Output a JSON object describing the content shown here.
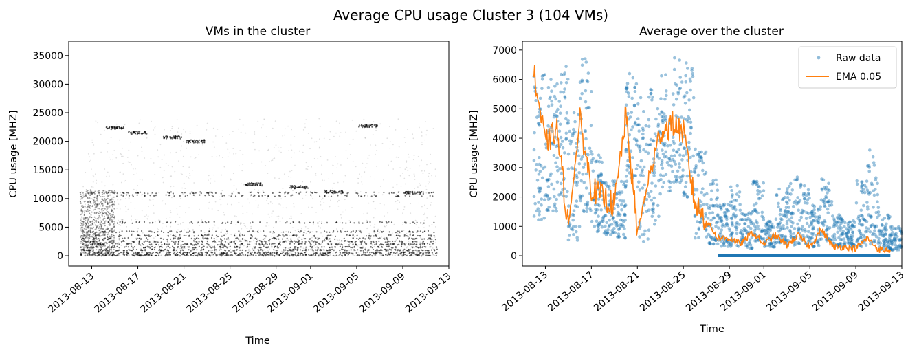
{
  "figure": {
    "suptitle": "Average CPU usage Cluster 3 (104 VMs)"
  },
  "chart_data": [
    {
      "type": "scatter",
      "title": "VMs in the cluster",
      "xlabel": "Time",
      "ylabel": "CPU usage [MHZ]",
      "x_ticks": [
        "2013-08-13",
        "2013-08-17",
        "2013-08-21",
        "2013-08-25",
        "2013-08-29",
        "2013-09-01",
        "2013-09-05",
        "2013-09-09",
        "2013-09-13"
      ],
      "y_ticks": [
        0,
        5000,
        10000,
        15000,
        20000,
        25000,
        30000,
        35000
      ],
      "xlim": [
        "2013-08-11",
        "2013-09-13"
      ],
      "ylim": [
        -1800,
        37500
      ],
      "x_range": [
        "2013-08-12",
        "2013-09-12"
      ],
      "point_color": "#000000",
      "bands": [
        {
          "y": 100,
          "density": 1.0
        },
        {
          "y": 500,
          "density": 0.9
        },
        {
          "y": 1000,
          "density": 0.85
        },
        {
          "y": 1500,
          "density": 0.7
        },
        {
          "y": 2000,
          "density": 0.65
        },
        {
          "y": 2500,
          "density": 0.6
        },
        {
          "y": 3000,
          "density": 0.55
        },
        {
          "y": 3500,
          "density": 0.5
        },
        {
          "y": 4200,
          "density": 0.45
        },
        {
          "y": 5800,
          "density": 0.35
        },
        {
          "y": 10500,
          "density": 0.3
        },
        {
          "y": 11000,
          "density": 0.4
        }
      ],
      "early_block": {
        "x_start": "2013-08-12",
        "x_end": "2013-08-15",
        "y_min": 0,
        "y_max": 11500
      },
      "clusters": [
        {
          "x": "2013-08-15",
          "y": 22300
        },
        {
          "x": "2013-08-17",
          "y": 21500
        },
        {
          "x": "2013-08-20",
          "y": 20700
        },
        {
          "x": "2013-08-22",
          "y": 20000
        },
        {
          "x": "2013-08-31",
          "y": 12000
        },
        {
          "x": "2013-09-03",
          "y": 11200
        },
        {
          "x": "2013-09-10",
          "y": 11000
        },
        {
          "x": "2013-09-06",
          "y": 22700
        },
        {
          "x": "2013-08-27",
          "y": 12500
        }
      ]
    },
    {
      "type": "scatter+line",
      "title": "Average over the cluster",
      "xlabel": "Time",
      "ylabel": "CPU usage [MHZ]",
      "x_ticks": [
        "2013-08-13",
        "2013-08-17",
        "2013-08-21",
        "2013-08-25",
        "2013-08-29",
        "2013-09-01",
        "2013-09-05",
        "2013-09-09",
        "2013-09-13"
      ],
      "y_ticks": [
        0,
        1000,
        2000,
        3000,
        4000,
        5000,
        6000,
        7000
      ],
      "xlim": [
        "2013-08-11",
        "2013-09-13"
      ],
      "ylim": [
        -350,
        7300
      ],
      "legend": {
        "position": "top-right",
        "entries": [
          "Raw data",
          "EMA 0.05"
        ]
      },
      "series": [
        {
          "name": "Raw data",
          "type": "scatter",
          "color": "#1f77b4"
        },
        {
          "name": "EMA 0.05",
          "type": "line",
          "color": "#ff7f0e"
        }
      ],
      "ema_curve": [
        [
          "2013-08-12",
          6200
        ],
        [
          "2013-08-13",
          3800
        ],
        [
          "2013-08-14",
          4300
        ],
        [
          "2013-08-15",
          1000
        ],
        [
          "2013-08-16",
          4600
        ],
        [
          "2013-08-17",
          2300
        ],
        [
          "2013-08-18",
          2000
        ],
        [
          "2013-08-19",
          1700
        ],
        [
          "2013-08-20",
          4800
        ],
        [
          "2013-08-21",
          800
        ],
        [
          "2013-08-22",
          2600
        ],
        [
          "2013-08-23",
          4200
        ],
        [
          "2013-08-24",
          4500
        ],
        [
          "2013-08-25",
          4200
        ],
        [
          "2013-08-26",
          1800
        ],
        [
          "2013-08-27",
          1200
        ],
        [
          "2013-08-28",
          600
        ],
        [
          "2013-08-29",
          600
        ],
        [
          "2013-08-30",
          400
        ],
        [
          "2013-08-31",
          800
        ],
        [
          "2013-09-01",
          400
        ],
        [
          "2013-09-02",
          700
        ],
        [
          "2013-09-03",
          350
        ],
        [
          "2013-09-04",
          700
        ],
        [
          "2013-09-05",
          300
        ],
        [
          "2013-09-06",
          900
        ],
        [
          "2013-09-07",
          300
        ],
        [
          "2013-09-08",
          300
        ],
        [
          "2013-09-09",
          250
        ],
        [
          "2013-09-10",
          600
        ],
        [
          "2013-09-11",
          200
        ],
        [
          "2013-09-12",
          200
        ]
      ],
      "raw_envelope": [
        [
          "2013-08-12",
          1200,
          6200
        ],
        [
          "2013-08-13",
          1500,
          6000
        ],
        [
          "2013-08-14",
          2000,
          6500
        ],
        [
          "2013-08-15",
          500,
          5000
        ],
        [
          "2013-08-16",
          1500,
          6800
        ],
        [
          "2013-08-17",
          800,
          3500
        ],
        [
          "2013-08-18",
          700,
          2700
        ],
        [
          "2013-08-19",
          600,
          2800
        ],
        [
          "2013-08-20",
          2500,
          6400
        ],
        [
          "2013-08-21",
          400,
          5500
        ],
        [
          "2013-08-22",
          1000,
          5800
        ],
        [
          "2013-08-23",
          2200,
          6200
        ],
        [
          "2013-08-24",
          2500,
          6900
        ],
        [
          "2013-08-25",
          2000,
          6600
        ],
        [
          "2013-08-26",
          500,
          3800
        ],
        [
          "2013-08-27",
          400,
          2600
        ],
        [
          "2013-08-28",
          300,
          1800
        ],
        [
          "2013-08-29",
          300,
          2600
        ],
        [
          "2013-08-30",
          250,
          1500
        ],
        [
          "2013-08-31",
          500,
          2600
        ],
        [
          "2013-09-01",
          300,
          1200
        ],
        [
          "2013-09-02",
          400,
          2300
        ],
        [
          "2013-09-03",
          300,
          2800
        ],
        [
          "2013-09-04",
          400,
          2500
        ],
        [
          "2013-09-05",
          300,
          1800
        ],
        [
          "2013-09-06",
          500,
          2700
        ],
        [
          "2013-09-07",
          300,
          1400
        ],
        [
          "2013-09-08",
          300,
          1200
        ],
        [
          "2013-09-09",
          300,
          2600
        ],
        [
          "2013-09-10",
          400,
          3600
        ],
        [
          "2013-09-11",
          200,
          1400
        ],
        [
          "2013-09-12",
          200,
          1000
        ]
      ],
      "baseline_band": {
        "x_start": "2013-08-28",
        "x_end": "2013-09-12",
        "y": 0
      }
    }
  ]
}
